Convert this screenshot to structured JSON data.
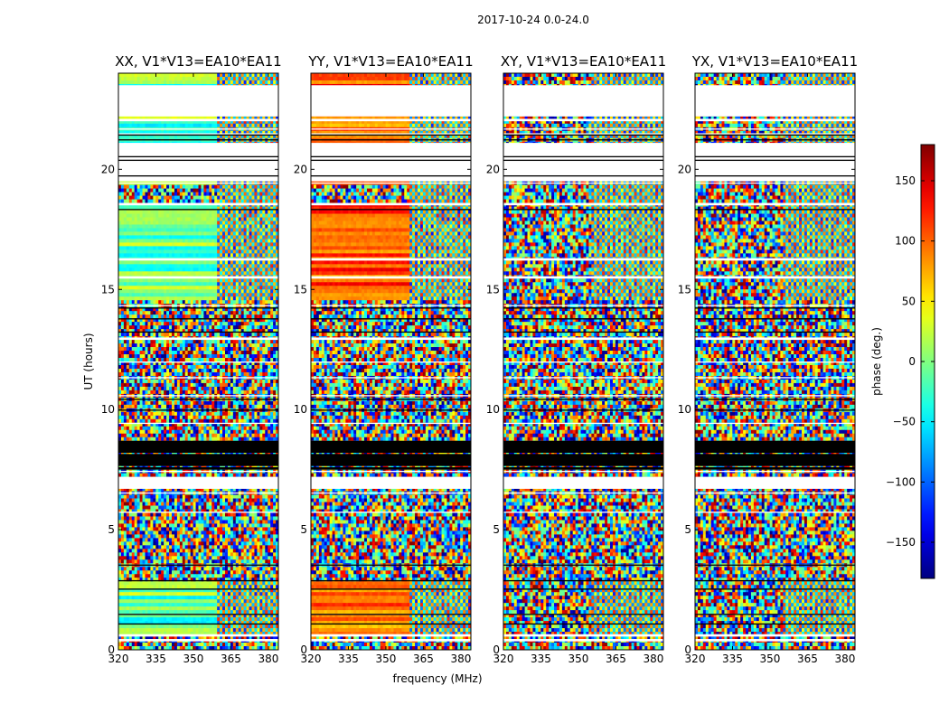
{
  "chart_data": {
    "type": "heatmap",
    "suptitle": "2017-10-24 0.0-24.0",
    "xlabel": "frequency (MHz)",
    "ylabel": "UT (hours)",
    "xlim": [
      320,
      384
    ],
    "ylim": [
      0,
      24
    ],
    "x_ticks": [
      "320",
      "335",
      "350",
      "365",
      "380"
    ],
    "x_tick_values": [
      320,
      335,
      350,
      365,
      380
    ],
    "y_ticks": [
      "0",
      "5",
      "10",
      "15",
      "20"
    ],
    "y_tick_values": [
      0,
      5,
      10,
      15,
      20
    ],
    "panels": [
      {
        "title": "XX, V1*V13=EA10*EA11",
        "smooth": true,
        "smooth_cutoff_mhz": 360,
        "palette": "green"
      },
      {
        "title": "YY, V1*V13=EA10*EA11",
        "smooth": true,
        "smooth_cutoff_mhz": 360,
        "palette": "warm"
      },
      {
        "title": "XY, V1*V13=EA10*EA11",
        "smooth": false,
        "smooth_cutoff_mhz": 355,
        "palette": "noise"
      },
      {
        "title": "YX, V1*V13=EA10*EA11",
        "smooth": false,
        "smooth_cutoff_mhz": 355,
        "palette": "noise"
      }
    ],
    "blank_ut_ranges": [
      [
        0.35,
        0.45
      ],
      [
        0.55,
        0.65
      ],
      [
        1.45,
        1.5
      ],
      [
        3.5,
        3.55
      ],
      [
        5.7,
        5.75
      ],
      [
        6.5,
        6.55
      ],
      [
        6.7,
        7.2
      ],
      [
        7.4,
        7.45
      ],
      [
        9.4,
        9.45
      ],
      [
        10.55,
        10.6
      ],
      [
        11.3,
        11.35
      ],
      [
        11.95,
        12.0
      ],
      [
        12.9,
        13.0
      ],
      [
        14.3,
        14.35
      ],
      [
        15.45,
        15.55
      ],
      [
        16.2,
        16.3
      ],
      [
        18.5,
        18.6
      ],
      [
        19.4,
        19.45
      ],
      [
        19.5,
        21.1
      ],
      [
        21.45,
        21.5
      ],
      [
        21.65,
        21.7
      ],
      [
        22.0,
        22.1
      ],
      [
        22.2,
        23.5
      ],
      [
        24.0,
        24.0
      ]
    ],
    "black_ut_ranges": [
      [
        7.5,
        7.6
      ],
      [
        7.65,
        8.15
      ],
      [
        8.2,
        8.7
      ],
      [
        2.5,
        2.55
      ],
      [
        2.85,
        2.9
      ],
      [
        1.05,
        1.1
      ],
      [
        1.45,
        1.5
      ],
      [
        3.5,
        3.55
      ],
      [
        9.95,
        10.0
      ],
      [
        10.4,
        10.45
      ],
      [
        13.2,
        13.25
      ],
      [
        13.75,
        13.8
      ],
      [
        14.2,
        14.25
      ],
      [
        18.3,
        18.35
      ],
      [
        19.7,
        19.75
      ],
      [
        20.35,
        20.4
      ],
      [
        20.5,
        20.55
      ],
      [
        21.2,
        21.25
      ],
      [
        21.4,
        21.45
      ]
    ],
    "colorbar": {
      "label": "phase (deg.)",
      "range": [
        -180,
        180
      ],
      "ticks": [
        "150",
        "100",
        "50",
        "0",
        "−50",
        "−100",
        "−150"
      ],
      "tick_values": [
        150,
        100,
        50,
        0,
        -50,
        -100,
        -150
      ]
    }
  }
}
